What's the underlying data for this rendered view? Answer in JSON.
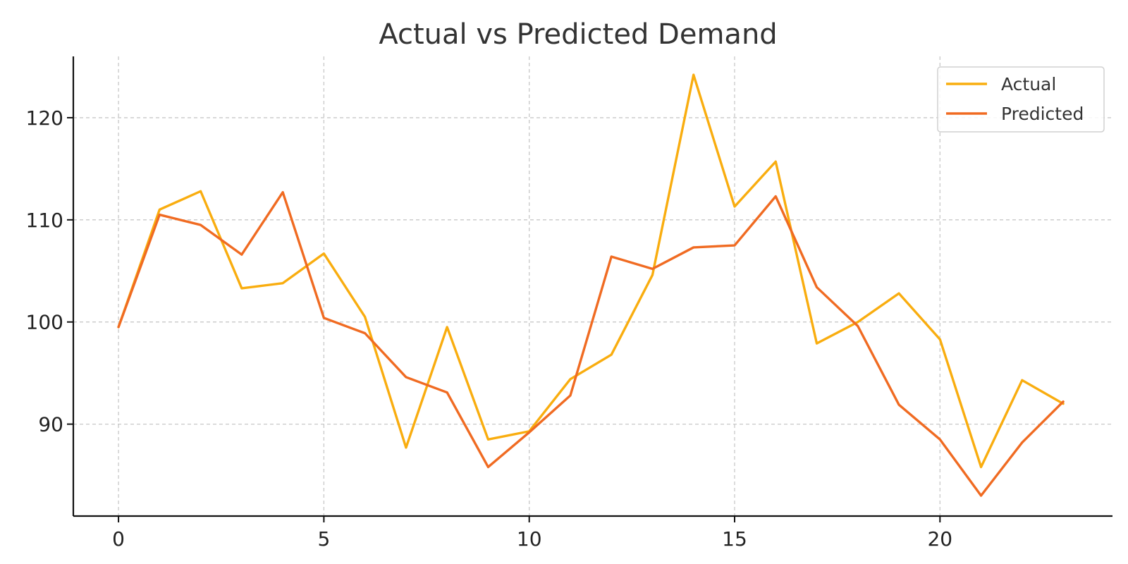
{
  "chart_data": {
    "type": "line",
    "title": "Actual vs Predicted Demand",
    "xlabel": "",
    "ylabel": "",
    "x": [
      0,
      1,
      2,
      3,
      4,
      5,
      6,
      7,
      8,
      9,
      10,
      11,
      12,
      13,
      14,
      15,
      16,
      17,
      18,
      19,
      20,
      21,
      22,
      23
    ],
    "series": [
      {
        "name": "Actual",
        "color": "#f9ad0f",
        "values": [
          99.5,
          111.0,
          112.8,
          103.3,
          103.8,
          106.7,
          100.5,
          87.7,
          99.5,
          88.5,
          89.3,
          94.4,
          96.8,
          104.6,
          124.2,
          111.3,
          115.7,
          97.9,
          100.0,
          102.8,
          98.3,
          85.8,
          94.3,
          92.0
        ]
      },
      {
        "name": "Predicted",
        "color": "#f06b22",
        "values": [
          99.5,
          110.5,
          109.5,
          106.6,
          112.7,
          100.4,
          98.9,
          94.6,
          93.1,
          85.8,
          89.2,
          92.8,
          106.4,
          105.2,
          107.3,
          107.5,
          112.3,
          103.4,
          99.6,
          91.9,
          88.5,
          83.0,
          88.2,
          92.2
        ]
      }
    ],
    "xlim": [
      -1.1,
      24.2
    ],
    "ylim": [
      81.0,
      126.0
    ],
    "xticks": [
      0,
      5,
      10,
      15,
      20
    ],
    "yticks": [
      90,
      100,
      110,
      120
    ],
    "grid": true,
    "legend_position": "top-right"
  }
}
